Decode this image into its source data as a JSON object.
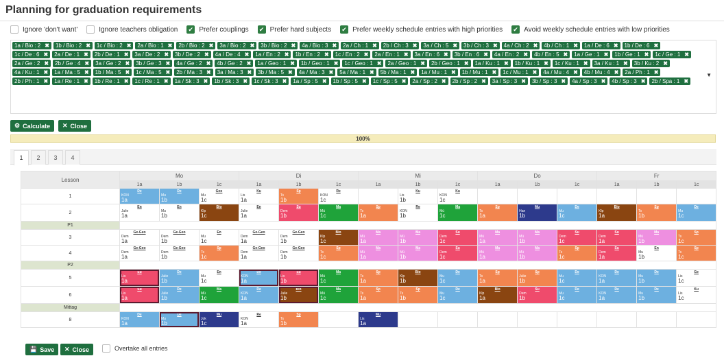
{
  "title": "Planning for graduation requirements",
  "options": [
    {
      "label": "Ignore 'don't want'",
      "checked": false
    },
    {
      "label": "Ignore teachers obligation",
      "checked": false
    },
    {
      "label": "Prefer couplings",
      "checked": true
    },
    {
      "label": "Prefer hard subjects",
      "checked": true
    },
    {
      "label": "Prefer weekly schedule entries with high priorities",
      "checked": true
    },
    {
      "label": "Avoid weekly schedule entries with low priorities",
      "checked": true
    }
  ],
  "tags": [
    "1a / Bio : 2",
    "1b / Bio : 2",
    "1c / Bio : 2",
    "2a / Bio : 1",
    "2b / Bio : 2",
    "3a / Bio : 2",
    "3b / Bio : 2",
    "4a / Bio : 3",
    "2a / Ch : 1",
    "2b / Ch : 3",
    "3a / Ch : 5",
    "3b / Ch : 3",
    "4a / Ch : 2",
    "4b / Ch : 1",
    "1a / De : 6",
    "1b / De : 6",
    "1c / De : 6",
    "2a / De : 1",
    "2b / De : 1",
    "3a / De : 2",
    "3b / De : 2",
    "4a / De : 4",
    "1a / En : 2",
    "1b / En : 2",
    "1c / En : 2",
    "2a / En : 1",
    "3a / En : 6",
    "3b / En : 6",
    "4a / En : 2",
    "4b / En : 5",
    "1a / Ge : 1",
    "1b / Ge : 1",
    "1c / Ge : 1",
    "2a / Ge : 2",
    "2b / Ge : 4",
    "3a / Ge : 2",
    "3b / Ge : 3",
    "4a / Ge : 2",
    "4b / Ge : 2",
    "1a / Geo : 1",
    "1b / Geo : 1",
    "1c / Geo : 1",
    "2a / Geo : 1",
    "2b / Geo : 1",
    "1a / Ku : 1",
    "1b / Ku : 1",
    "1c / Ku : 1",
    "3a / Ku : 1",
    "3b / Ku : 2",
    "4a / Ku : 1",
    "1a / Ma : 5",
    "1b / Ma : 5",
    "1c / Ma : 5",
    "2b / Ma : 3",
    "3a / Ma : 3",
    "3b / Ma : 5",
    "4a / Ma : 3",
    "5a / Ma : 1",
    "5b / Ma : 1",
    "1a / Mu : 1",
    "1b / Mu : 1",
    "1c / Mu : 1",
    "4a / Mu : 4",
    "4b / Mu : 4",
    "2a / Ph : 1",
    "2b / Ph : 1",
    "1a / Re : 1",
    "1b / Re : 1",
    "1c / Re : 1",
    "1a / Sk : 3",
    "1b / Sk : 3",
    "1c / Sk : 3",
    "1a / Sp : 5",
    "1b / Sp : 5",
    "1c / Sp : 5",
    "2a / Sp : 2",
    "2b / Sp : 2",
    "3a / Sp : 3",
    "3b / Sp : 3",
    "4a / Sp : 3",
    "4b / Sp : 3",
    "2b / Spa : 1"
  ],
  "tag_remove_glyph": "✖",
  "dropdown_caret": "▼",
  "buttons": {
    "calculate": "Calculate",
    "close": "Close",
    "save": "Save",
    "close_bottom": "Close",
    "gear_glyph": "⚙",
    "x_glyph": "✕",
    "save_glyph": "💾",
    "check_glyph": "✔"
  },
  "progress": {
    "label": "100%",
    "value": 100
  },
  "tabs": [
    "1",
    "2",
    "3",
    "4"
  ],
  "active_tab": 0,
  "overtake_label": "Overtake all entries",
  "timetable": {
    "lesson_header": "Lesson",
    "days": [
      "Mo",
      "Di",
      "Mi",
      "Do",
      "Fr"
    ],
    "classes": [
      "1a",
      "1b",
      "1c"
    ],
    "rows": [
      {
        "label": "1",
        "cells": [
          {
            "s": "De",
            "t": "KON",
            "c": "1a",
            "color": "#6db0e0"
          },
          {
            "s": "De",
            "t": "Mu",
            "c": "1b",
            "color": "#6db0e0"
          },
          {
            "s": "Geo",
            "t": "Mu",
            "c": "1c",
            "color": "#ffffff"
          },
          {
            "s": "Ku",
            "t": "Lis",
            "c": "1a",
            "color": "#ffffff"
          },
          {
            "s": "Sp",
            "t": "Ts",
            "c": "1b",
            "color": "#f2854f"
          },
          {
            "s": "Re",
            "t": "KON",
            "c": "1c",
            "color": "#ffffff"
          },
          {},
          {
            "s": "Ku",
            "t": "Lis",
            "c": "1b",
            "color": "#ffffff"
          },
          {
            "s": "Ku",
            "t": "KON",
            "c": "1c",
            "color": "#ffffff"
          },
          {},
          {},
          {},
          {},
          {},
          {}
        ]
      },
      {
        "label": "2",
        "cells": [
          {
            "s": "En",
            "t": "Julie",
            "c": "1a",
            "color": "#ffffff"
          },
          {
            "s": "En",
            "t": "Mu",
            "c": "1b",
            "color": "#ffffff"
          },
          {
            "s": "Bio",
            "t": "Klp",
            "c": "1c",
            "color": "#8a4511"
          },
          {
            "s": "En",
            "t": "Julie",
            "c": "1a",
            "color": "#ffffff"
          },
          {
            "s": "Su",
            "t": "Dem",
            "c": "1b",
            "color": "#ef4b6c"
          },
          {
            "s": "Ma",
            "t": "Mü",
            "c": "1c",
            "color": "#1fa33a"
          },
          {
            "s": "Sp",
            "t": "Ts",
            "c": "1a",
            "color": "#f2854f"
          },
          {
            "s": "Re",
            "t": "KON",
            "c": "1b",
            "color": "#ffffff"
          },
          {
            "s": "Ma",
            "t": "Mü",
            "c": "1c",
            "color": "#1fa33a"
          },
          {
            "s": "Sp",
            "t": "Ts",
            "c": "1a",
            "color": "#f2854f"
          },
          {
            "s": "Mu",
            "t": "Han",
            "c": "1b",
            "color": "#2d3a8c"
          },
          {
            "s": "De",
            "t": "Mu",
            "c": "1c",
            "color": "#6db0e0"
          },
          {
            "s": "Bio",
            "t": "Klp",
            "c": "1a",
            "color": "#8a4511"
          },
          {
            "s": "Sp",
            "t": "Ts",
            "c": "1b",
            "color": "#f2854f"
          },
          {
            "s": "De",
            "t": "Mu",
            "c": "1c",
            "color": "#6db0e0"
          }
        ]
      },
      {
        "label": "P1",
        "break": true
      },
      {
        "label": "3",
        "cells": [
          {
            "s": "Ge-Geo",
            "t": "Dem",
            "c": "1a",
            "color": "#ffffff"
          },
          {
            "s": "Ge-Geo",
            "t": "Dem",
            "c": "1b",
            "color": "#ffffff"
          },
          {
            "s": "En",
            "t": "Mu",
            "c": "1c",
            "color": "#ffffff"
          },
          {
            "s": "Ge-Geo",
            "t": "Dem",
            "c": "1a",
            "color": "#ffffff"
          },
          {
            "s": "Ge-Geo",
            "t": "Dem",
            "c": "1b",
            "color": "#ffffff"
          },
          {
            "s": "Bio",
            "t": "Klp",
            "c": "1c",
            "color": "#8a4511"
          },
          {
            "s": "Ma",
            "t": "Mü",
            "c": "1a",
            "color": "#ee8fe0"
          },
          {
            "s": "Ma",
            "t": "Mü",
            "c": "1b",
            "color": "#ee8fe0"
          },
          {
            "s": "Su",
            "t": "Dem",
            "c": "1c",
            "color": "#ef4b6c"
          },
          {
            "s": "Ma",
            "t": "Mü",
            "c": "1a",
            "color": "#ee8fe0"
          },
          {
            "s": "Ma",
            "t": "Mü",
            "c": "1b",
            "color": "#ee8fe0"
          },
          {
            "s": "Su",
            "t": "Dem",
            "c": "1c",
            "color": "#ef4b6c"
          },
          {
            "s": "Su",
            "t": "Dem",
            "c": "1a",
            "color": "#ef4b6c"
          },
          {
            "s": "Ma",
            "t": "Mü",
            "c": "1b",
            "color": "#ee8fe0"
          },
          {
            "s": "Sp",
            "t": "Ts",
            "c": "1c",
            "color": "#f2854f"
          }
        ]
      },
      {
        "label": "4",
        "cells": [
          {
            "s": "Ge-Geo",
            "t": "Dem",
            "c": "1a",
            "color": "#ffffff"
          },
          {
            "s": "Ge-Geo",
            "t": "Dem",
            "c": "1b",
            "color": "#ffffff"
          },
          {
            "s": "Sp",
            "t": "Ts",
            "c": "1c",
            "color": "#f2854f"
          },
          {
            "s": "Ge-Geo",
            "t": "Dem",
            "c": "1a",
            "color": "#ffffff"
          },
          {
            "s": "Ge-Geo",
            "t": "Dem",
            "c": "1b",
            "color": "#ffffff"
          },
          {
            "s": "Sp",
            "t": "Ts",
            "c": "1c",
            "color": "#f2854f"
          },
          {
            "s": "Ma",
            "t": "Mü",
            "c": "1a",
            "color": "#ee8fe0"
          },
          {
            "s": "Ma",
            "t": "Mü",
            "c": "1b",
            "color": "#ee8fe0"
          },
          {
            "s": "Su",
            "t": "Dem",
            "c": "1c",
            "color": "#ef4b6c"
          },
          {
            "s": "Ma",
            "t": "Mü",
            "c": "1a",
            "color": "#ee8fe0"
          },
          {
            "s": "Ma",
            "t": "Mü",
            "c": "1b",
            "color": "#ee8fe0"
          },
          {
            "s": "Sp",
            "t": "Ts",
            "c": "1c",
            "color": "#f2854f"
          },
          {
            "s": "Su",
            "t": "Dem",
            "c": "1a",
            "color": "#ef4b6c"
          },
          {
            "s": "En",
            "t": "Mu",
            "c": "1b",
            "color": "#ffffff"
          },
          {
            "s": "Sp",
            "t": "Ts",
            "c": "1c",
            "color": "#f2854f"
          }
        ]
      },
      {
        "label": "P2",
        "break": true
      },
      {
        "label": "5",
        "cells": [
          {
            "s": "Su",
            "t": "Lis",
            "c": "1a",
            "color": "#ef4b6c",
            "sel": true
          },
          {
            "s": "De",
            "t": "Julie",
            "c": "1b",
            "color": "#6db0e0"
          },
          {
            "s": "En",
            "t": "Mu",
            "c": "1c",
            "color": "#ffffff"
          },
          {
            "s": "De",
            "t": "KON",
            "c": "1a",
            "color": "#6db0e0",
            "sel": true
          },
          {
            "s": "Su",
            "t": "Lis",
            "c": "1b",
            "color": "#ef4b6c",
            "sel": true
          },
          {
            "s": "Ma",
            "t": "Mü",
            "c": "1c",
            "color": "#1fa33a"
          },
          {
            "s": "Sp",
            "t": "Ts",
            "c": "1a",
            "color": "#f2854f"
          },
          {
            "s": "Bio",
            "t": "Klp",
            "c": "1b",
            "color": "#8a4511"
          },
          {
            "s": "De",
            "t": "Mu",
            "c": "1c",
            "color": "#6db0e0"
          },
          {
            "s": "Sp",
            "t": "Ts",
            "c": "1a",
            "color": "#f2854f"
          },
          {
            "s": "Sp",
            "t": "Julie",
            "c": "1b",
            "color": "#f2854f"
          },
          {
            "s": "De",
            "t": "Mu",
            "c": "1c",
            "color": "#6db0e0"
          },
          {
            "s": "De",
            "t": "KON",
            "c": "1a",
            "color": "#6db0e0"
          },
          {
            "s": "De",
            "t": "Mu",
            "c": "1b",
            "color": "#6db0e0"
          },
          {
            "s": "Ge",
            "t": "Lis",
            "c": "1c",
            "color": "#ffffff"
          }
        ]
      },
      {
        "label": "6",
        "cells": [
          {
            "s": "Su",
            "t": "Lis",
            "c": "1a",
            "color": "#ef4b6c",
            "sel": true
          },
          {
            "s": "De",
            "t": "Julie",
            "c": "1b",
            "color": "#6db0e0"
          },
          {
            "s": "Ma",
            "t": "Mü",
            "c": "1c",
            "color": "#1fa33a"
          },
          {
            "s": "De",
            "t": "KON",
            "c": "1a",
            "color": "#6db0e0"
          },
          {
            "s": "Bio",
            "t": "Julie",
            "c": "1b",
            "color": "#8a4511",
            "sel": true
          },
          {
            "s": "Ma",
            "t": "Mü",
            "c": "1c",
            "color": "#1fa33a"
          },
          {
            "s": "Sp",
            "t": "Ts",
            "c": "1a",
            "color": "#f2854f"
          },
          {
            "s": "Sp",
            "t": "Ts",
            "c": "1b",
            "color": "#f2854f"
          },
          {
            "s": "De",
            "t": "Mu",
            "c": "1c",
            "color": "#6db0e0"
          },
          {
            "s": "Bio",
            "t": "Klp",
            "c": "1a",
            "color": "#8a4511"
          },
          {
            "s": "Su",
            "t": "Dem",
            "c": "1b",
            "color": "#ef4b6c"
          },
          {
            "s": "De",
            "t": "Mu",
            "c": "1c",
            "color": "#6db0e0"
          },
          {
            "s": "De",
            "t": "KON",
            "c": "1a",
            "color": "#6db0e0"
          },
          {
            "s": "De",
            "t": "Mu",
            "c": "1b",
            "color": "#6db0e0"
          },
          {
            "s": "Ku",
            "t": "Lis",
            "c": "1c",
            "color": "#ffffff"
          }
        ]
      },
      {
        "label": "Mittag",
        "break": true
      },
      {
        "label": "8",
        "cells": [
          {
            "s": "De",
            "t": "KON",
            "c": "1a",
            "color": "#6db0e0"
          },
          {
            "s": "De",
            "t": "Mu",
            "c": "1b",
            "color": "#6db0e0",
            "sel": true
          },
          {
            "s": "Mu",
            "t": "Jok",
            "c": "1c",
            "color": "#2d3a8c"
          },
          {
            "s": "Re",
            "t": "KON",
            "c": "1a",
            "color": "#ffffff"
          },
          {
            "s": "Sp",
            "t": "Ts",
            "c": "1b",
            "color": "#f2854f"
          },
          {},
          {
            "s": "Mu",
            "t": "Lis",
            "c": "1a",
            "color": "#2d3a8c"
          },
          {},
          {},
          {},
          {},
          {},
          {},
          {},
          {}
        ]
      }
    ]
  }
}
